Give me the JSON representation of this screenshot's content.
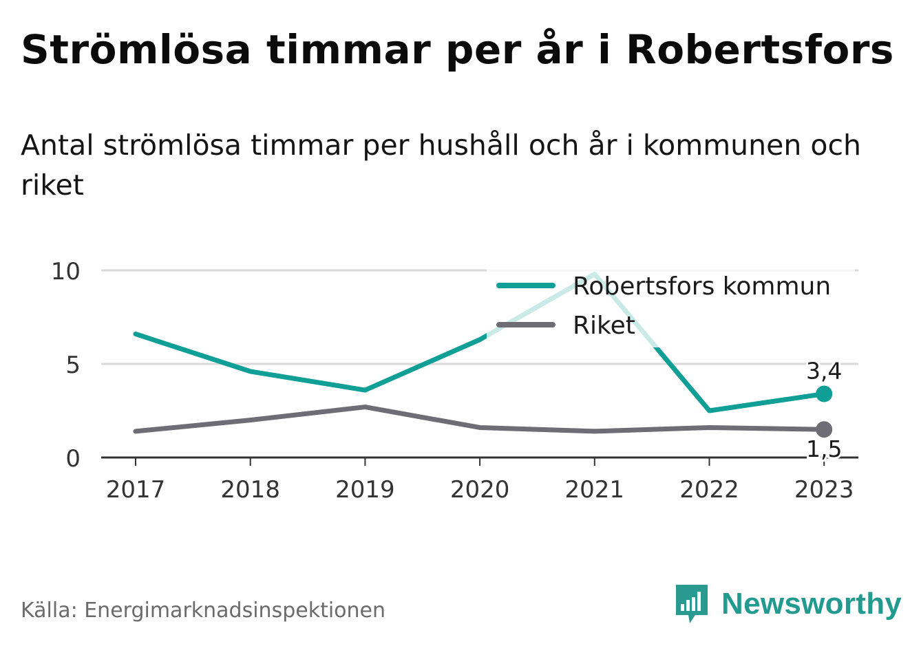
{
  "title": "Strömlösa timmar per år i Robertsfors",
  "subtitle": "Antal strömlösa timmar per hushåll och år i kommunen och riket",
  "source": "Källa: Energimarknadsinspektionen",
  "brand": {
    "name": "Newsworthy",
    "icon": "bar-chart-speech-icon",
    "color": "#2a9a90"
  },
  "colors": {
    "robertsfors": "#109f96",
    "riket": "#6e6d75",
    "grid": "#d9d9d9",
    "axis": "#333333"
  },
  "chart_data": {
    "type": "line",
    "x": [
      "2017",
      "2018",
      "2019",
      "2020",
      "2021",
      "2022",
      "2023"
    ],
    "ylim": [
      0,
      10
    ],
    "yticks": [
      0,
      5,
      10
    ],
    "grid": true,
    "legend_position": "top-right",
    "series": [
      {
        "name": "Robertsfors kommun",
        "values": [
          6.6,
          4.6,
          3.6,
          6.3,
          9.8,
          2.5,
          3.4
        ],
        "end_label": "3,4"
      },
      {
        "name": "Riket",
        "values": [
          1.4,
          2.0,
          2.7,
          1.6,
          1.4,
          1.6,
          1.5
        ],
        "end_label": "1,5"
      }
    ]
  }
}
